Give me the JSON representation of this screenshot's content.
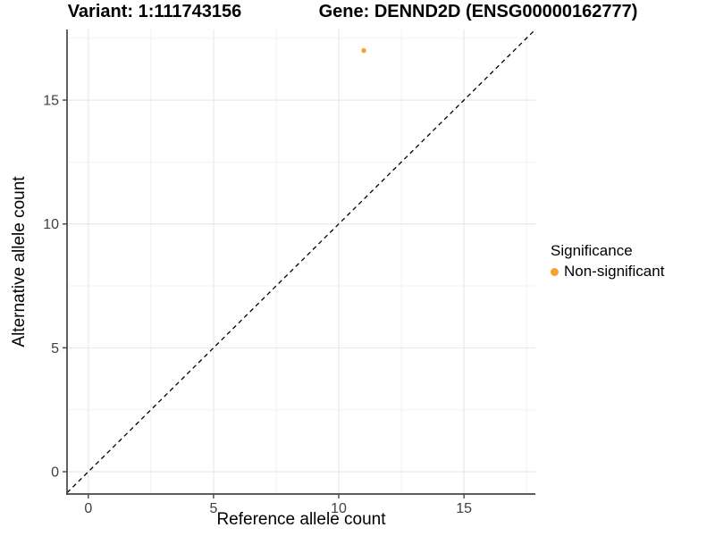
{
  "chart_data": {
    "type": "scatter",
    "title_left": "Variant: 1:111743156",
    "title_right": "Gene: DENND2D (ENSG00000162777)",
    "xlabel": "Reference allele count",
    "ylabel": "Alternative allele count",
    "xlim": [
      -0.85,
      17.85
    ],
    "ylim": [
      -0.9,
      17.85
    ],
    "xticks": [
      0,
      5,
      10,
      15
    ],
    "yticks": [
      0,
      5,
      10,
      15
    ],
    "minor_xticks": [
      2.5,
      7.5,
      12.5,
      17.5
    ],
    "minor_yticks": [
      2.5,
      7.5,
      12.5,
      17.5
    ],
    "grid": "major+minor",
    "identity_line": {
      "slope": 1,
      "intercept": 0,
      "style": "dashed",
      "color": "#000000"
    },
    "points": [
      {
        "x": 11,
        "y": 17,
        "series": "Non-significant"
      }
    ],
    "legend": {
      "title": "Significance",
      "position": "right",
      "items": [
        {
          "label": "Non-significant",
          "color": "#F9A12B"
        }
      ]
    },
    "colors": {
      "point": "#F9A12B",
      "axis_line": "#454545",
      "tick_text": "#404040",
      "grid_major": "#e7e7e7",
      "grid_minor": "#f2f2f2",
      "background": "#ffffff"
    }
  }
}
